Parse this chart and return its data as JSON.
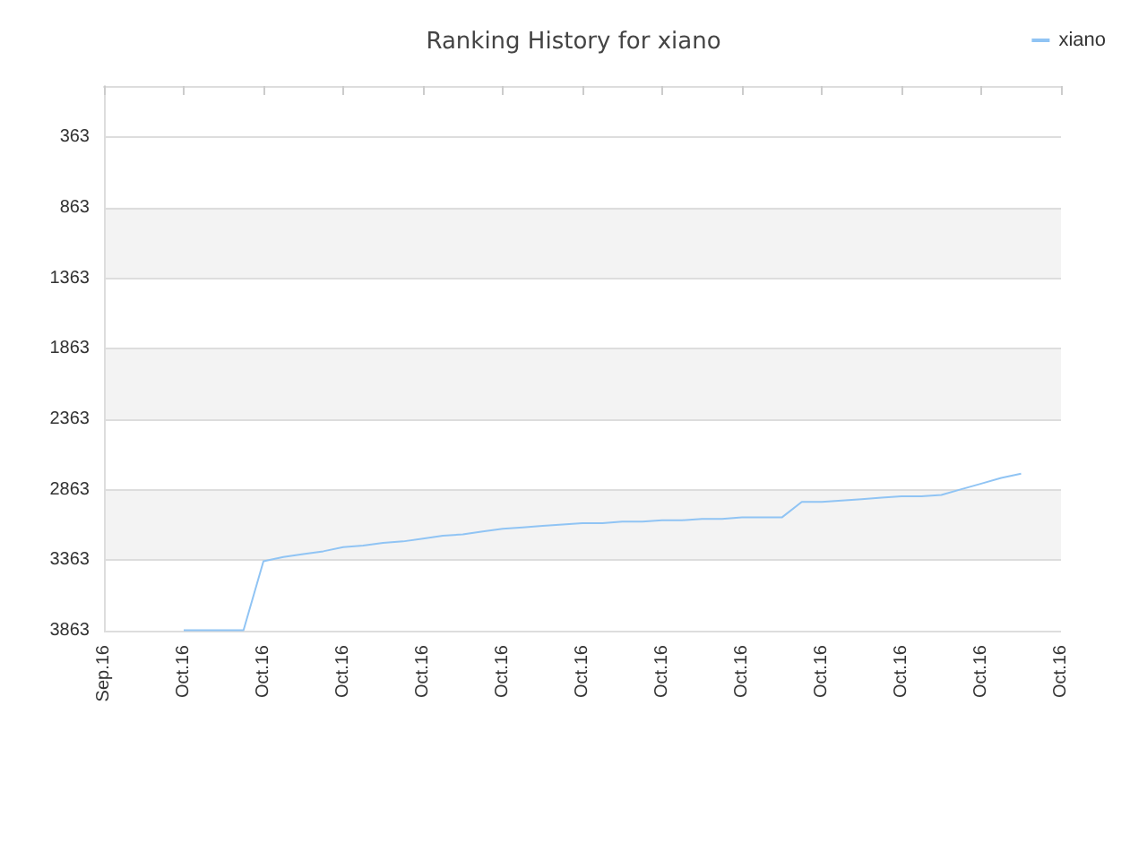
{
  "chart_data": {
    "type": "line",
    "title": "Ranking History for xiano",
    "legend": "top right",
    "grid": "y",
    "marker": "none",
    "categories": [
      "Sep.16",
      null,
      null,
      null,
      "Oct.16",
      null,
      null,
      null,
      "Oct.16",
      null,
      null,
      null,
      "Oct.16",
      null,
      null,
      null,
      "Oct.16",
      null,
      null,
      null,
      "Oct.16",
      null,
      null,
      null,
      "Oct.16",
      null,
      null,
      null,
      "Oct.16",
      null,
      null,
      null,
      "Oct.16",
      null,
      null,
      null,
      "Oct.16",
      null,
      null,
      null,
      "Oct.16",
      null,
      null,
      null,
      "Oct.16",
      null,
      null,
      null,
      "Oct.16"
    ],
    "ylim": [
      3863,
      0
    ],
    "yticks": [
      363,
      863,
      1363,
      1863,
      2363,
      2863,
      3363,
      3863
    ],
    "series": [
      {
        "name": "xiano",
        "color": "#90c4f4",
        "values": [
          null,
          null,
          null,
          null,
          3860,
          3860,
          3860,
          3860,
          3370,
          3340,
          3320,
          3300,
          3270,
          3260,
          3240,
          3230,
          3210,
          3190,
          3180,
          3160,
          3140,
          3130,
          3120,
          3110,
          3100,
          3100,
          3090,
          3090,
          3080,
          3080,
          3070,
          3070,
          3060,
          3060,
          3060,
          2950,
          2950,
          2940,
          2930,
          2920,
          2910,
          2910,
          2900,
          2860,
          2820,
          2780,
          2750,
          null,
          null
        ]
      }
    ]
  }
}
